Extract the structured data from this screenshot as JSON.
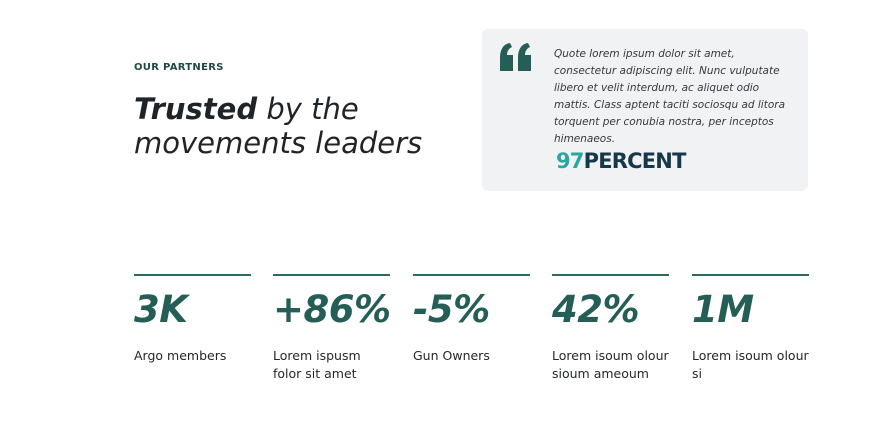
{
  "header": {
    "eyebrow": "OUR PARTNERS",
    "headline_bold": "Trusted",
    "headline_rest": " by the movements leaders"
  },
  "testimonial": {
    "quote_icon": "quote-icon",
    "text": "Quote lorem ipsum dolor sit amet, consectetur adipiscing elit. Nunc vulputate libero et velit interdum, ac aliquet odio mattis. Class aptent taciti sociosqu ad litora torquent per conubia nostra, per inceptos himenaeos.",
    "logo_number": "97",
    "logo_word": "PERCENT"
  },
  "stats": [
    {
      "value": "3K",
      "label": "Argo members"
    },
    {
      "value": "+86%",
      "label": "Lorem ispusm folor sit amet"
    },
    {
      "value": "-5%",
      "label": "Gun Owners"
    },
    {
      "value": "42%",
      "label": "Lorem isoum olour sioum ameoum"
    },
    {
      "value": "1M",
      "label": "Lorem isoum olour si"
    }
  ],
  "colors": {
    "accent": "#255e57",
    "card_background": "#f1f2f4",
    "logo_teal": "#2aa7a0",
    "logo_navy": "#16384a"
  }
}
